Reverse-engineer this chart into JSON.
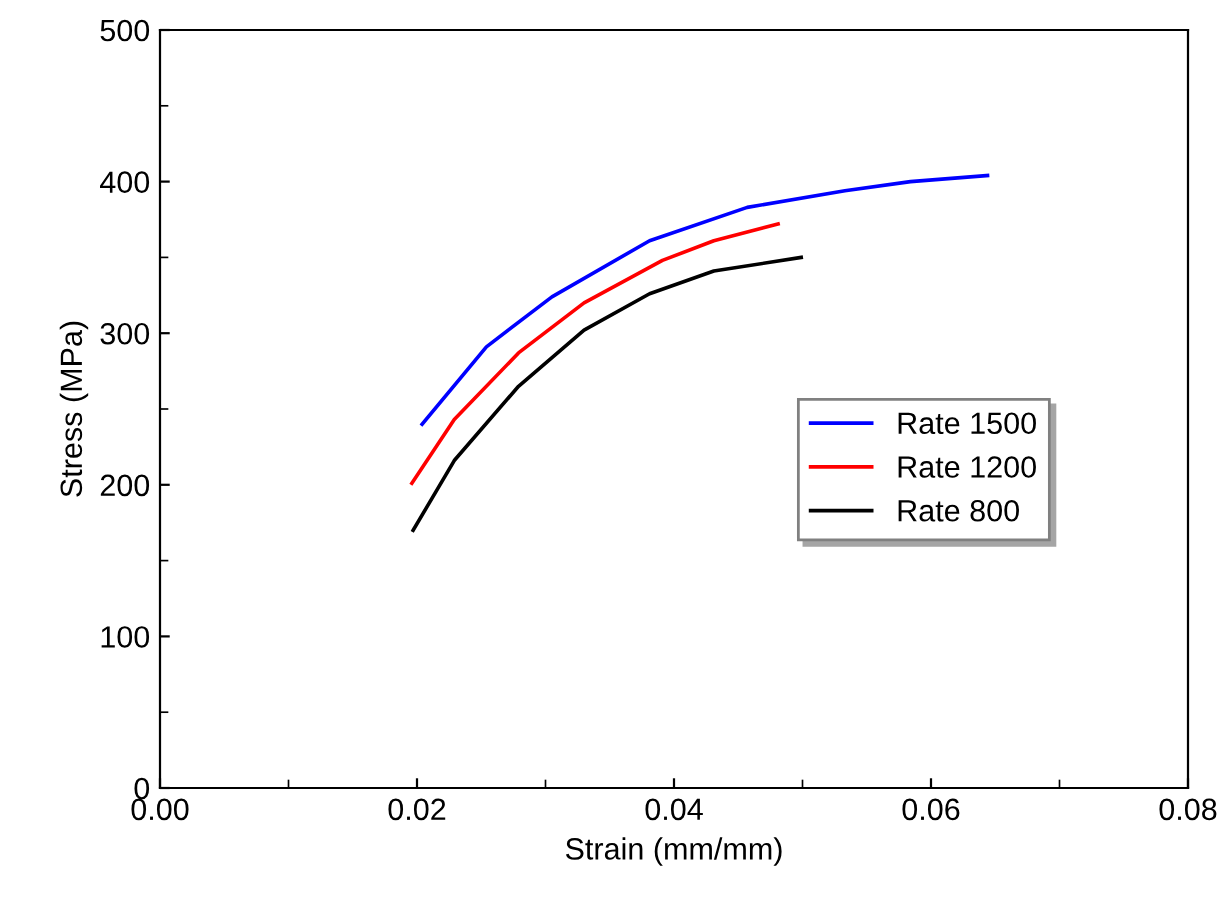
{
  "chart_data": {
    "type": "line",
    "xlabel": "Strain (mm/mm)",
    "ylabel": "Stress (MPa)",
    "xlim": [
      0,
      0.08
    ],
    "ylim": [
      0,
      500
    ],
    "xticks": [
      {
        "value": 0,
        "label": "0.00"
      },
      {
        "value": 0.02,
        "label": "0.02"
      },
      {
        "value": 0.04,
        "label": "0.04"
      },
      {
        "value": 0.06,
        "label": "0.06"
      },
      {
        "value": 0.08,
        "label": "0.08"
      }
    ],
    "yticks": [
      0,
      100,
      200,
      300,
      400,
      500
    ],
    "grid": false,
    "legend": "right",
    "marker": "none",
    "line_style": "solid",
    "series": [
      {
        "name": "Rate 1500",
        "color": "#0000ff",
        "x": [
          0.0204,
          0.0254,
          0.0305,
          0.0381,
          0.0457,
          0.0533,
          0.0584,
          0.0644
        ],
        "values": [
          240,
          291,
          324,
          361,
          383,
          394,
          400,
          404
        ]
      },
      {
        "name": "Rate 1200",
        "color": "#ff0000",
        "x": [
          0.0196,
          0.0229,
          0.0279,
          0.033,
          0.0391,
          0.0431,
          0.0481
        ],
        "values": [
          201,
          243,
          287,
          320,
          348,
          361,
          372
        ]
      },
      {
        "name": "Rate 800",
        "color": "#000000",
        "x": [
          0.0197,
          0.0229,
          0.0279,
          0.033,
          0.0381,
          0.0431,
          0.0499
        ],
        "values": [
          170,
          216,
          265,
          302,
          326,
          341,
          350
        ]
      }
    ]
  }
}
